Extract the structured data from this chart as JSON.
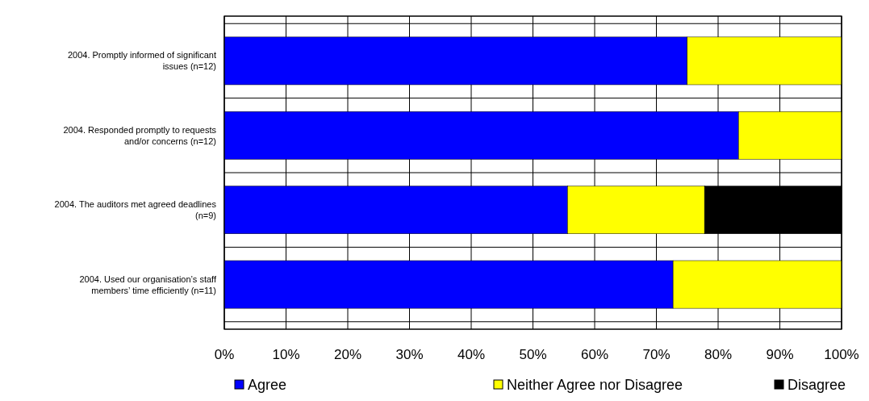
{
  "chart_data": {
    "type": "bar",
    "orientation": "horizontal",
    "stacked": true,
    "categories": [
      "2004. Promptly informed of significant issues (n=12)",
      "2004. Responded promptly to requests and/or concerns (n=12)",
      "2004. The auditors met agreed deadlines (n=9)",
      "2004. Used our organisation’s staff members’ time efficiently (n=11)"
    ],
    "series": [
      {
        "name": "Agree",
        "color": "#0000ff",
        "values": [
          75,
          83.3,
          55.6,
          72.7
        ]
      },
      {
        "name": "Neither Agree nor Disagree",
        "color": "#ffff00",
        "values": [
          25,
          16.7,
          22.2,
          27.3
        ]
      },
      {
        "name": "Disagree",
        "color": "#000000",
        "values": [
          null,
          null,
          22.2,
          null
        ]
      }
    ],
    "xlim": [
      0,
      100
    ],
    "xticks": [
      {
        "value": 0,
        "label": "0%"
      },
      {
        "value": 10,
        "label": "10%"
      },
      {
        "value": 20,
        "label": "20%"
      },
      {
        "value": 30,
        "label": "30%"
      },
      {
        "value": 40,
        "label": "40%"
      },
      {
        "value": 50,
        "label": "50%"
      },
      {
        "value": 60,
        "label": "60%"
      },
      {
        "value": 70,
        "label": "70%"
      },
      {
        "value": 80,
        "label": "80%"
      },
      {
        "value": 90,
        "label": "90%"
      },
      {
        "value": 100,
        "label": "100%"
      }
    ],
    "grid": true,
    "legend": "bottom"
  }
}
